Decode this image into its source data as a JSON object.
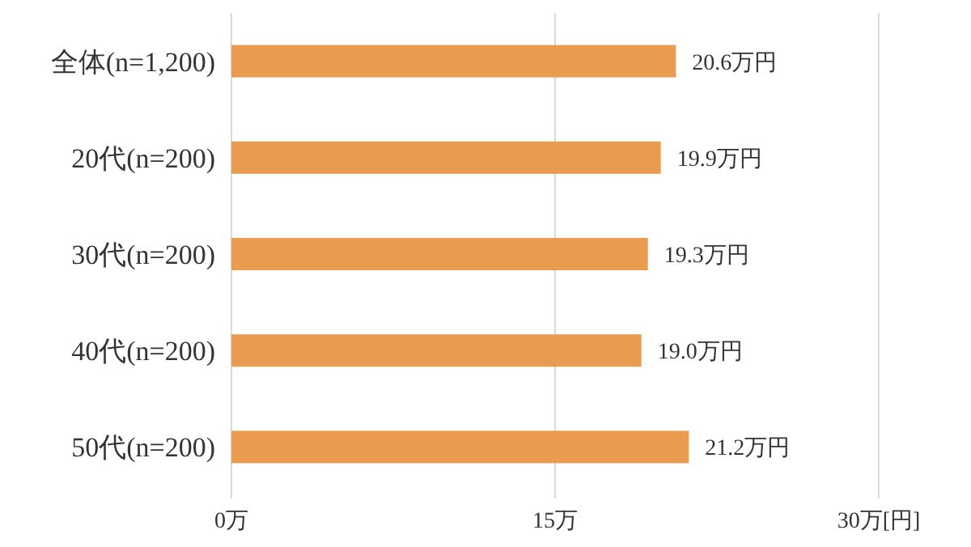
{
  "chart_data": {
    "type": "bar",
    "orientation": "horizontal",
    "categories": [
      "全体(n=1,200)",
      "20代(n=200)",
      "30代(n=200)",
      "40代(n=200)",
      "50代(n=200)"
    ],
    "series": [
      {
        "color": "#e99b4f",
        "values": [
          20.6,
          19.9,
          19.3,
          19.0,
          21.2
        ],
        "value_labels": [
          "20.6万円",
          "19.9万円",
          "19.3万円",
          "19.0万円",
          "21.2万円"
        ]
      }
    ],
    "xlim": [
      0,
      30
    ],
    "xticks": [
      {
        "value": 0,
        "label": "0万"
      },
      {
        "value": 15,
        "label": "15万"
      },
      {
        "value": 30,
        "label": "30万[円]"
      }
    ],
    "grid": "x"
  }
}
